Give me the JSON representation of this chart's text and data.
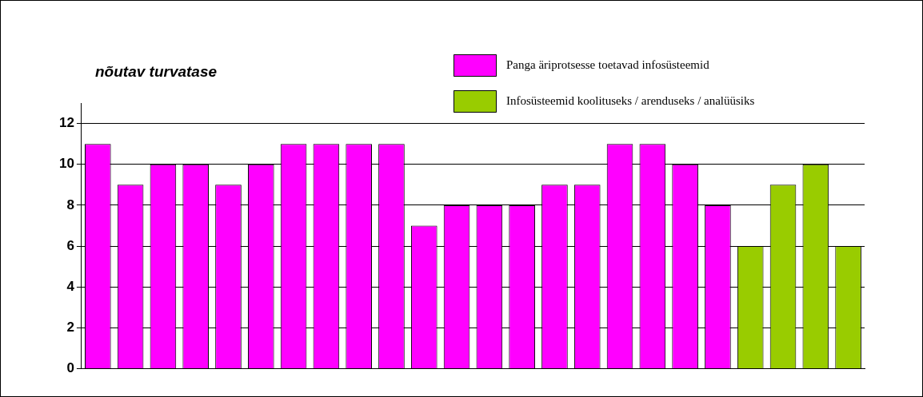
{
  "chart_data": {
    "type": "bar",
    "ylabel": "nõutav turvatase",
    "categories": [
      null,
      null,
      null,
      null,
      null,
      null,
      null,
      null,
      null,
      null,
      null,
      null,
      null,
      null,
      null,
      null,
      null,
      null,
      null,
      null,
      null,
      null,
      null,
      null
    ],
    "series": [
      {
        "name": "Panga äriprotsesse toetavad infosüsteemid",
        "color": "#ff00ff",
        "values": [
          11,
          9,
          10,
          10,
          9,
          10,
          11,
          11,
          11,
          11,
          7,
          8,
          8,
          8,
          9,
          9,
          11,
          11,
          10,
          8,
          null,
          null,
          null,
          null
        ]
      },
      {
        "name": "Infosüsteemid koolituseks / arenduseks / analüüsiks",
        "color": "#99cc00",
        "values": [
          null,
          null,
          null,
          null,
          null,
          null,
          null,
          null,
          null,
          null,
          null,
          null,
          null,
          null,
          null,
          null,
          null,
          null,
          null,
          null,
          6,
          9,
          10,
          6
        ]
      }
    ],
    "ylim": [
      0,
      13
    ],
    "yticks": [
      0,
      2,
      4,
      6,
      8,
      10,
      12
    ],
    "grid": "y",
    "legend": "top right"
  }
}
